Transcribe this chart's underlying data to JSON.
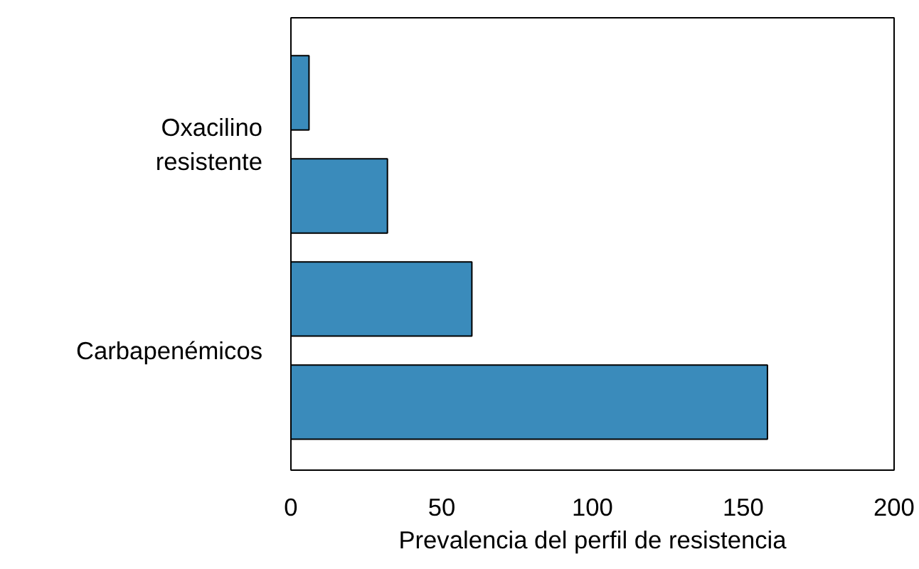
{
  "chart_data": {
    "type": "bar",
    "orientation": "horizontal",
    "xlabel": "Prevalencia del perfil de resistencia",
    "categories": [
      "Oxacilino resistente",
      "Carbapenémicos"
    ],
    "series": [
      {
        "color": "#3a8bbb",
        "values": [
          6,
          60
        ]
      },
      {
        "color": "#3a8bbb",
        "values": [
          32,
          158
        ]
      }
    ],
    "xlim": [
      0,
      200
    ],
    "xticks": [
      0,
      50,
      100,
      150,
      200
    ],
    "grid": false
  }
}
